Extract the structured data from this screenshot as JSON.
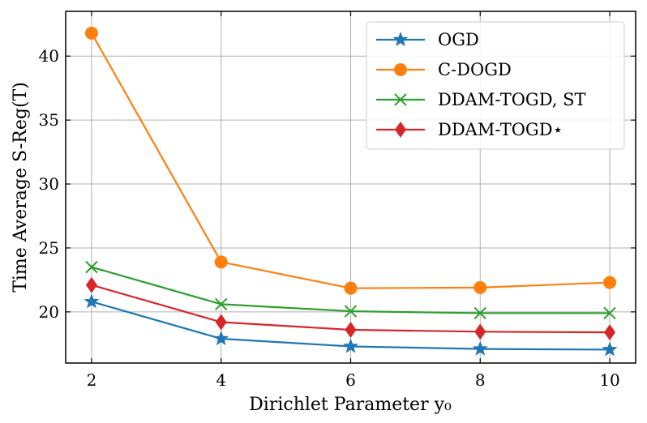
{
  "chart_data": {
    "type": "line",
    "title": "",
    "xlabel": "Dirichlet Parameter y₀",
    "ylabel": "Time Average S-Reg(T)",
    "x": [
      2,
      4,
      6,
      8,
      10
    ],
    "x_ticks": [
      "2",
      "4",
      "6",
      "8",
      "10"
    ],
    "y_ticks": [
      "20",
      "25",
      "30",
      "35",
      "40"
    ],
    "y_tick_values": [
      20,
      25,
      30,
      35,
      40
    ],
    "xlim": [
      1.6,
      10.4
    ],
    "ylim": [
      16.0,
      43.5
    ],
    "grid": true,
    "legend_position": "top-right",
    "series": [
      {
        "name": "OGD",
        "color": "#1f77b4",
        "marker": "star",
        "values": [
          20.8,
          17.9,
          17.3,
          17.1,
          17.05
        ]
      },
      {
        "name": "C-DOGD",
        "color": "#ff7f0e",
        "marker": "circle",
        "values": [
          41.8,
          23.9,
          21.85,
          21.9,
          22.3
        ]
      },
      {
        "name": "DDAM-TOGD, ST",
        "color": "#2ca02c",
        "marker": "x",
        "values": [
          23.5,
          20.6,
          20.05,
          19.9,
          19.9
        ]
      },
      {
        "name": "DDAM-TOGD⋆",
        "color": "#d62728",
        "marker": "diamond",
        "values": [
          22.1,
          19.2,
          18.6,
          18.45,
          18.4
        ]
      }
    ]
  }
}
